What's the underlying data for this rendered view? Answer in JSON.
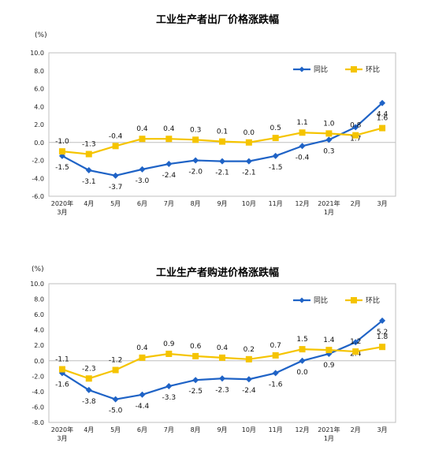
{
  "chart_data": [
    {
      "type": "line",
      "title": "工业生产者出厂价格涨跌幅",
      "unit": "(%)",
      "ylim": [
        -6.0,
        10.0
      ],
      "yticks": [
        "10.0",
        "8.0",
        "6.0",
        "4.0",
        "2.0",
        "0.0",
        "-2.0",
        "-4.0",
        "-6.0"
      ],
      "categories": [
        "2020年\n3月",
        "4月",
        "5月",
        "6月",
        "7月",
        "8月",
        "9月",
        "10月",
        "11月",
        "12月",
        "2021年\n1月",
        "2月",
        "3月"
      ],
      "legend_position": "top-right",
      "grid": false,
      "series": [
        {
          "name": "同比",
          "color": "#1f63c6",
          "marker": "diamond",
          "values": [
            -1.5,
            -3.1,
            -3.7,
            -3.0,
            -2.4,
            -2.0,
            -2.1,
            -2.1,
            -1.5,
            -0.4,
            0.3,
            1.7,
            4.4
          ],
          "labels": [
            "-1.5",
            "-3.1",
            "-3.7",
            "-3.0",
            "-2.4",
            "-2.0",
            "-2.1",
            "-2.1",
            "-1.5",
            "-0.4",
            "0.3",
            "1.7",
            "4.4"
          ]
        },
        {
          "name": "环比",
          "color": "#f5c400",
          "marker": "square",
          "values": [
            -1.0,
            -1.3,
            -0.4,
            0.4,
            0.4,
            0.3,
            0.1,
            0.0,
            0.5,
            1.1,
            1.0,
            0.8,
            1.6
          ],
          "labels": [
            "-1.0",
            "-1.3",
            "-0.4",
            "0.4",
            "0.4",
            "0.3",
            "0.1",
            "0.0",
            "0.5",
            "1.1",
            "1.0",
            "0.8",
            "1.6"
          ]
        }
      ]
    },
    {
      "type": "line",
      "title": "工业生产者购进价格涨跌幅",
      "unit": "(%)",
      "ylim": [
        -8.0,
        10.0
      ],
      "yticks": [
        "10.0",
        "8.0",
        "6.0",
        "4.0",
        "2.0",
        "0.0",
        "-2.0",
        "-4.0",
        "-6.0",
        "-8.0"
      ],
      "categories": [
        "2020年\n3月",
        "4月",
        "5月",
        "6月",
        "7月",
        "8月",
        "9月",
        "10月",
        "11月",
        "12月",
        "2021年\n1月",
        "2月",
        "3月"
      ],
      "legend_position": "top-right",
      "grid": false,
      "series": [
        {
          "name": "同比",
          "color": "#1f63c6",
          "marker": "diamond",
          "values": [
            -1.6,
            -3.8,
            -5.0,
            -4.4,
            -3.3,
            -2.5,
            -2.3,
            -2.4,
            -1.6,
            0.0,
            0.9,
            2.4,
            5.2
          ],
          "labels": [
            "-1.6",
            "-3.8",
            "-5.0",
            "-4.4",
            "-3.3",
            "-2.5",
            "-2.3",
            "-2.4",
            "-1.6",
            "0.0",
            "0.9",
            "2.4",
            "5.2"
          ]
        },
        {
          "name": "环比",
          "color": "#f5c400",
          "marker": "square",
          "values": [
            -1.1,
            -2.3,
            -1.2,
            0.4,
            0.9,
            0.6,
            0.4,
            0.2,
            0.7,
            1.5,
            1.4,
            1.2,
            1.8
          ],
          "labels": [
            "-1.1",
            "-2.3",
            "-1.2",
            "0.4",
            "0.9",
            "0.6",
            "0.4",
            "0.2",
            "0.7",
            "1.5",
            "1.4",
            "1.2",
            "1.8"
          ]
        }
      ]
    }
  ]
}
